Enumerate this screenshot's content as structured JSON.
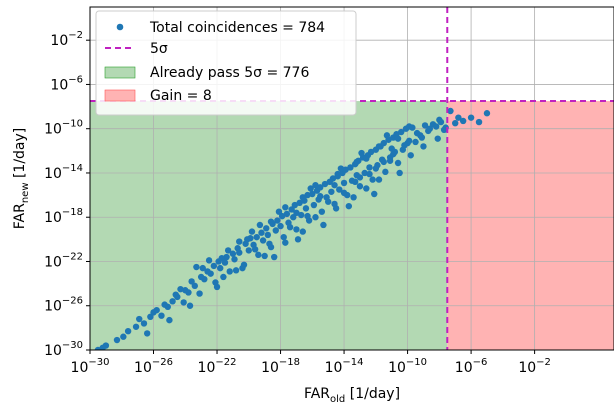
{
  "chart_data": {
    "type": "scatter",
    "xlabel": {
      "main": "FAR",
      "sub": "old",
      "suffix": " [1/day]"
    },
    "ylabel": {
      "main": "FAR",
      "sub": "new",
      "suffix": " [1/day]"
    },
    "x_scale": "log",
    "y_scale": "log",
    "xlim_exp": [
      -30,
      3
    ],
    "ylim_exp": [
      -30,
      1
    ],
    "x_ticks": [
      {
        "exp": -30,
        "base": "10",
        "power": "−30"
      },
      {
        "exp": -26,
        "base": "10",
        "power": "−26"
      },
      {
        "exp": -22,
        "base": "10",
        "power": "−22"
      },
      {
        "exp": -18,
        "base": "10",
        "power": "−18"
      },
      {
        "exp": -14,
        "base": "10",
        "power": "−14"
      },
      {
        "exp": -10,
        "base": "10",
        "power": "−10"
      },
      {
        "exp": -6,
        "base": "10",
        "power": "−6"
      },
      {
        "exp": -2,
        "base": "10",
        "power": "−2"
      }
    ],
    "y_ticks": [
      {
        "exp": -30,
        "base": "10",
        "power": "−30"
      },
      {
        "exp": -26,
        "base": "10",
        "power": "−26"
      },
      {
        "exp": -22,
        "base": "10",
        "power": "−22"
      },
      {
        "exp": -18,
        "base": "10",
        "power": "−18"
      },
      {
        "exp": -14,
        "base": "10",
        "power": "−14"
      },
      {
        "exp": -10,
        "base": "10",
        "power": "−10"
      },
      {
        "exp": -6,
        "base": "10",
        "power": "−6"
      },
      {
        "exp": -2,
        "base": "10",
        "power": "−2"
      }
    ],
    "grid": true,
    "legend_position": "top-left",
    "threshold_exp": -7.5,
    "regions": [
      {
        "name": "Already pass 5σ = 776",
        "color": "#b3d9b3",
        "edge": "#2ca02c"
      },
      {
        "name": "Gain = 8",
        "color": "#ffb3b3",
        "edge": "#ff5555"
      }
    ],
    "lines": [
      {
        "name": "5σ",
        "color": "#c020c0",
        "style": "dashed"
      }
    ],
    "series": [
      {
        "name": "Total coincidences = 784",
        "color": "#1f77b4",
        "points_log10": [
          [
            -29.5,
            -30.0
          ],
          [
            -29.0,
            -29.6
          ],
          [
            -28.3,
            -29.1
          ],
          [
            -27.6,
            -28.3
          ],
          [
            -27.1,
            -27.9
          ],
          [
            -26.6,
            -27.6
          ],
          [
            -26.2,
            -27.0
          ],
          [
            -25.8,
            -26.4
          ],
          [
            -25.5,
            -26.9
          ],
          [
            -25.1,
            -26.1
          ],
          [
            -24.8,
            -25.6
          ],
          [
            -24.5,
            -25.2
          ],
          [
            -24.1,
            -25.7
          ],
          [
            -23.8,
            -24.8
          ],
          [
            -23.4,
            -24.2
          ],
          [
            -23.1,
            -24.9
          ],
          [
            -22.8,
            -23.6
          ],
          [
            -22.4,
            -23.1
          ],
          [
            -22.1,
            -23.9
          ],
          [
            -21.8,
            -22.6
          ],
          [
            -21.5,
            -22.1
          ],
          [
            -21.2,
            -22.9
          ],
          [
            -20.9,
            -21.8
          ],
          [
            -20.6,
            -21.2
          ],
          [
            -20.3,
            -22.3
          ],
          [
            -20.0,
            -21.0
          ],
          [
            -19.7,
            -20.5
          ],
          [
            -19.4,
            -21.4
          ],
          [
            -19.1,
            -20.1
          ],
          [
            -18.8,
            -19.6
          ],
          [
            -18.6,
            -20.7
          ],
          [
            -18.3,
            -19.2
          ],
          [
            -18.0,
            -18.8
          ],
          [
            -17.8,
            -19.8
          ],
          [
            -17.5,
            -18.5
          ],
          [
            -17.2,
            -18.0
          ],
          [
            -17.0,
            -19.1
          ],
          [
            -16.7,
            -17.8
          ],
          [
            -16.4,
            -17.2
          ],
          [
            -16.2,
            -18.3
          ],
          [
            -15.9,
            -16.9
          ],
          [
            -15.6,
            -16.4
          ],
          [
            -15.4,
            -17.5
          ],
          [
            -15.1,
            -16.2
          ],
          [
            -14.8,
            -15.7
          ],
          [
            -14.6,
            -16.8
          ],
          [
            -14.3,
            -15.5
          ],
          [
            -14.0,
            -14.9
          ],
          [
            -13.8,
            -16.0
          ],
          [
            -13.5,
            -14.7
          ],
          [
            -13.2,
            -14.2
          ],
          [
            -13.0,
            -15.2
          ],
          [
            -12.7,
            -14.0
          ],
          [
            -12.4,
            -13.5
          ],
          [
            -12.2,
            -14.6
          ],
          [
            -11.9,
            -13.3
          ],
          [
            -11.6,
            -12.8
          ],
          [
            -11.4,
            -13.9
          ],
          [
            -11.1,
            -12.6
          ],
          [
            -10.8,
            -12.1
          ],
          [
            -10.6,
            -13.1
          ],
          [
            -10.3,
            -11.9
          ],
          [
            -10.0,
            -11.3
          ],
          [
            -9.8,
            -12.4
          ],
          [
            -9.5,
            -11.2
          ],
          [
            -9.2,
            -10.6
          ],
          [
            -9.0,
            -11.6
          ],
          [
            -8.7,
            -10.2
          ],
          [
            -8.4,
            -9.6
          ],
          [
            -8.1,
            -10.9
          ],
          [
            -7.9,
            -9.4
          ],
          [
            -7.7,
            -10.1
          ],
          [
            -7.3,
            -8.4
          ],
          [
            -7.0,
            -9.5
          ],
          [
            -6.8,
            -9.0
          ],
          [
            -6.5,
            -9.3
          ],
          [
            -6.0,
            -9.0
          ],
          [
            -5.5,
            -9.4
          ],
          [
            -5.0,
            -8.6
          ],
          [
            -29.2,
            -29.8
          ],
          [
            -27.9,
            -28.8
          ],
          [
            -26.9,
            -27.2
          ],
          [
            -26.0,
            -26.6
          ],
          [
            -25.3,
            -25.9
          ],
          [
            -24.6,
            -25.0
          ],
          [
            -24.0,
            -24.6
          ],
          [
            -23.6,
            -23.8
          ],
          [
            -23.0,
            -23.4
          ],
          [
            -22.6,
            -22.9
          ],
          [
            -22.2,
            -22.4
          ],
          [
            -21.9,
            -22.0
          ],
          [
            -21.4,
            -21.6
          ],
          [
            -21.0,
            -21.3
          ],
          [
            -20.7,
            -20.8
          ],
          [
            -20.2,
            -20.4
          ],
          [
            -19.9,
            -19.9
          ],
          [
            -19.5,
            -19.8
          ],
          [
            -19.2,
            -19.4
          ],
          [
            -18.9,
            -19.0
          ],
          [
            -18.5,
            -18.6
          ],
          [
            -18.2,
            -18.3
          ],
          [
            -17.9,
            -17.9
          ],
          [
            -17.6,
            -17.7
          ],
          [
            -17.3,
            -17.3
          ],
          [
            -17.1,
            -16.9
          ],
          [
            -16.8,
            -16.7
          ],
          [
            -16.5,
            -16.5
          ],
          [
            -16.3,
            -16.0
          ],
          [
            -16.0,
            -15.9
          ],
          [
            -15.7,
            -15.6
          ],
          [
            -15.5,
            -15.3
          ],
          [
            -15.2,
            -15.0
          ],
          [
            -14.9,
            -14.8
          ],
          [
            -14.7,
            -14.5
          ],
          [
            -14.4,
            -14.3
          ],
          [
            -14.1,
            -14.0
          ],
          [
            -13.9,
            -13.7
          ],
          [
            -13.6,
            -13.5
          ],
          [
            -13.3,
            -13.2
          ],
          [
            -13.1,
            -12.9
          ],
          [
            -12.8,
            -12.6
          ],
          [
            -12.5,
            -12.4
          ],
          [
            -12.3,
            -12.1
          ],
          [
            -12.0,
            -11.9
          ],
          [
            -11.7,
            -11.6
          ],
          [
            -11.5,
            -11.3
          ],
          [
            -11.2,
            -11.0
          ],
          [
            -10.9,
            -10.8
          ],
          [
            -10.7,
            -10.5
          ],
          [
            -10.4,
            -10.3
          ],
          [
            -10.1,
            -10.0
          ],
          [
            -9.9,
            -9.8
          ],
          [
            -21.6,
            -23.4
          ],
          [
            -20.4,
            -22.6
          ],
          [
            -19.0,
            -21.5
          ],
          [
            -17.7,
            -20.3
          ],
          [
            -16.6,
            -19.3
          ],
          [
            -15.8,
            -18.0
          ],
          [
            -14.5,
            -17.2
          ],
          [
            -13.4,
            -16.2
          ],
          [
            -12.6,
            -15.4
          ],
          [
            -11.8,
            -14.6
          ],
          [
            -22.0,
            -24.3
          ],
          [
            -23.7,
            -26.0
          ],
          [
            -25.0,
            -27.3
          ],
          [
            -26.4,
            -28.5
          ],
          [
            -18.4,
            -21.6
          ],
          [
            -16.9,
            -20.0
          ],
          [
            -15.3,
            -18.7
          ],
          [
            -13.7,
            -17.0
          ],
          [
            -12.1,
            -15.9
          ],
          [
            -10.5,
            -14.0
          ],
          [
            -24.3,
            -24.5
          ],
          [
            -22.9,
            -22.6
          ],
          [
            -21.3,
            -21.0
          ],
          [
            -19.8,
            -19.3
          ],
          [
            -18.1,
            -17.5
          ],
          [
            -16.1,
            -15.4
          ],
          [
            -14.2,
            -13.6
          ],
          [
            -12.9,
            -12.2
          ],
          [
            -11.3,
            -10.6
          ],
          [
            -9.7,
            -9.9
          ],
          [
            -8.9,
            -9.7
          ],
          [
            -8.2,
            -9.8
          ],
          [
            -9.4,
            -10.4
          ],
          [
            -10.2,
            -11.5
          ],
          [
            -11.0,
            -11.8
          ],
          [
            -19.6,
            -20.9
          ],
          [
            -17.4,
            -18.9
          ],
          [
            -15.0,
            -16.6
          ],
          [
            -13.0,
            -14.4
          ],
          [
            -11.5,
            -13.0
          ],
          [
            -20.8,
            -22.8
          ],
          [
            -18.7,
            -20.4
          ],
          [
            -16.3,
            -17.9
          ],
          [
            -14.0,
            -15.8
          ],
          [
            -12.4,
            -14.1
          ],
          [
            -10.9,
            -12.3
          ],
          [
            -21.7,
            -21.7
          ],
          [
            -20.1,
            -20.0
          ],
          [
            -18.6,
            -18.4
          ],
          [
            -17.0,
            -17.6
          ],
          [
            -15.5,
            -16.1
          ],
          [
            -14.6,
            -15.1
          ],
          [
            -13.3,
            -14.8
          ],
          [
            -12.0,
            -13.6
          ],
          [
            -11.1,
            -12.9
          ],
          [
            -9.9,
            -11.1
          ],
          [
            -9.1,
            -10.8
          ],
          [
            -8.6,
            -10.0
          ],
          [
            -8.0,
            -9.2
          ],
          [
            -7.6,
            -9.9
          ],
          [
            -23.3,
            -22.5
          ],
          [
            -22.5,
            -21.9
          ],
          [
            -20.6,
            -20.2
          ],
          [
            -19.3,
            -18.7
          ],
          [
            -17.7,
            -17.1
          ],
          [
            -16.6,
            -16.2
          ],
          [
            -15.8,
            -15.1
          ],
          [
            -14.4,
            -14.1
          ],
          [
            -13.2,
            -13.0
          ],
          [
            -12.6,
            -12.7
          ],
          [
            -11.8,
            -11.6
          ],
          [
            -10.6,
            -10.9
          ]
        ]
      }
    ]
  }
}
